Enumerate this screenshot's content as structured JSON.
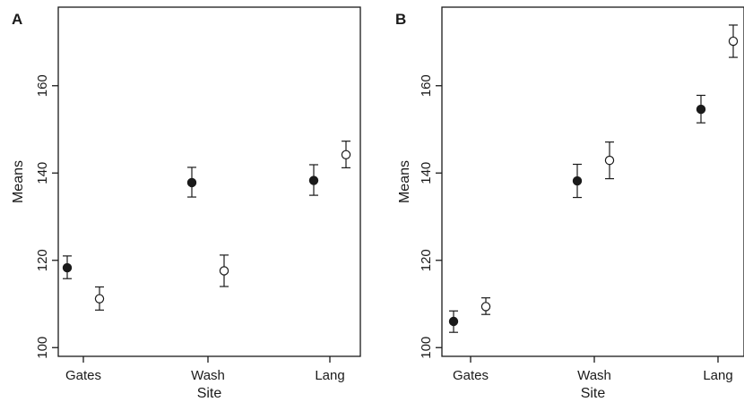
{
  "chart_data": [
    {
      "type": "scatter",
      "panel_label": "A",
      "xlabel": "Site",
      "ylabel": "Means",
      "categories": [
        "Gates",
        "Wash",
        "Lang"
      ],
      "ylim": [
        98,
        178
      ],
      "yticks": [
        100,
        120,
        140,
        160
      ],
      "grid": false,
      "legend": "none",
      "error_bars": true,
      "series": [
        {
          "marker": "filled-circle",
          "color": "#1a1a1a",
          "values": [
            118.3,
            137.8,
            138.3
          ],
          "lower": [
            115.8,
            134.5,
            134.9
          ],
          "upper": [
            121.0,
            141.3,
            141.9
          ]
        },
        {
          "marker": "open-circle",
          "color": "#1a1a1a",
          "values": [
            111.2,
            117.6,
            144.2
          ],
          "lower": [
            108.6,
            114.0,
            141.2
          ],
          "upper": [
            113.9,
            121.2,
            147.3
          ]
        }
      ]
    },
    {
      "type": "scatter",
      "panel_label": "B",
      "xlabel": "Site",
      "ylabel": "Means",
      "categories": [
        "Gates",
        "Wash",
        "Lang"
      ],
      "ylim": [
        98,
        178
      ],
      "yticks": [
        100,
        120,
        140,
        160
      ],
      "grid": false,
      "legend": "none",
      "error_bars": true,
      "series": [
        {
          "marker": "filled-circle",
          "color": "#1a1a1a",
          "values": [
            106.0,
            138.2,
            154.6
          ],
          "lower": [
            103.5,
            134.4,
            151.5
          ],
          "upper": [
            108.4,
            142.0,
            157.8
          ]
        },
        {
          "marker": "open-circle",
          "color": "#1a1a1a",
          "values": [
            109.4,
            142.9,
            170.2
          ],
          "lower": [
            107.6,
            138.7,
            166.5
          ],
          "upper": [
            111.4,
            147.1,
            173.9
          ]
        }
      ]
    }
  ]
}
